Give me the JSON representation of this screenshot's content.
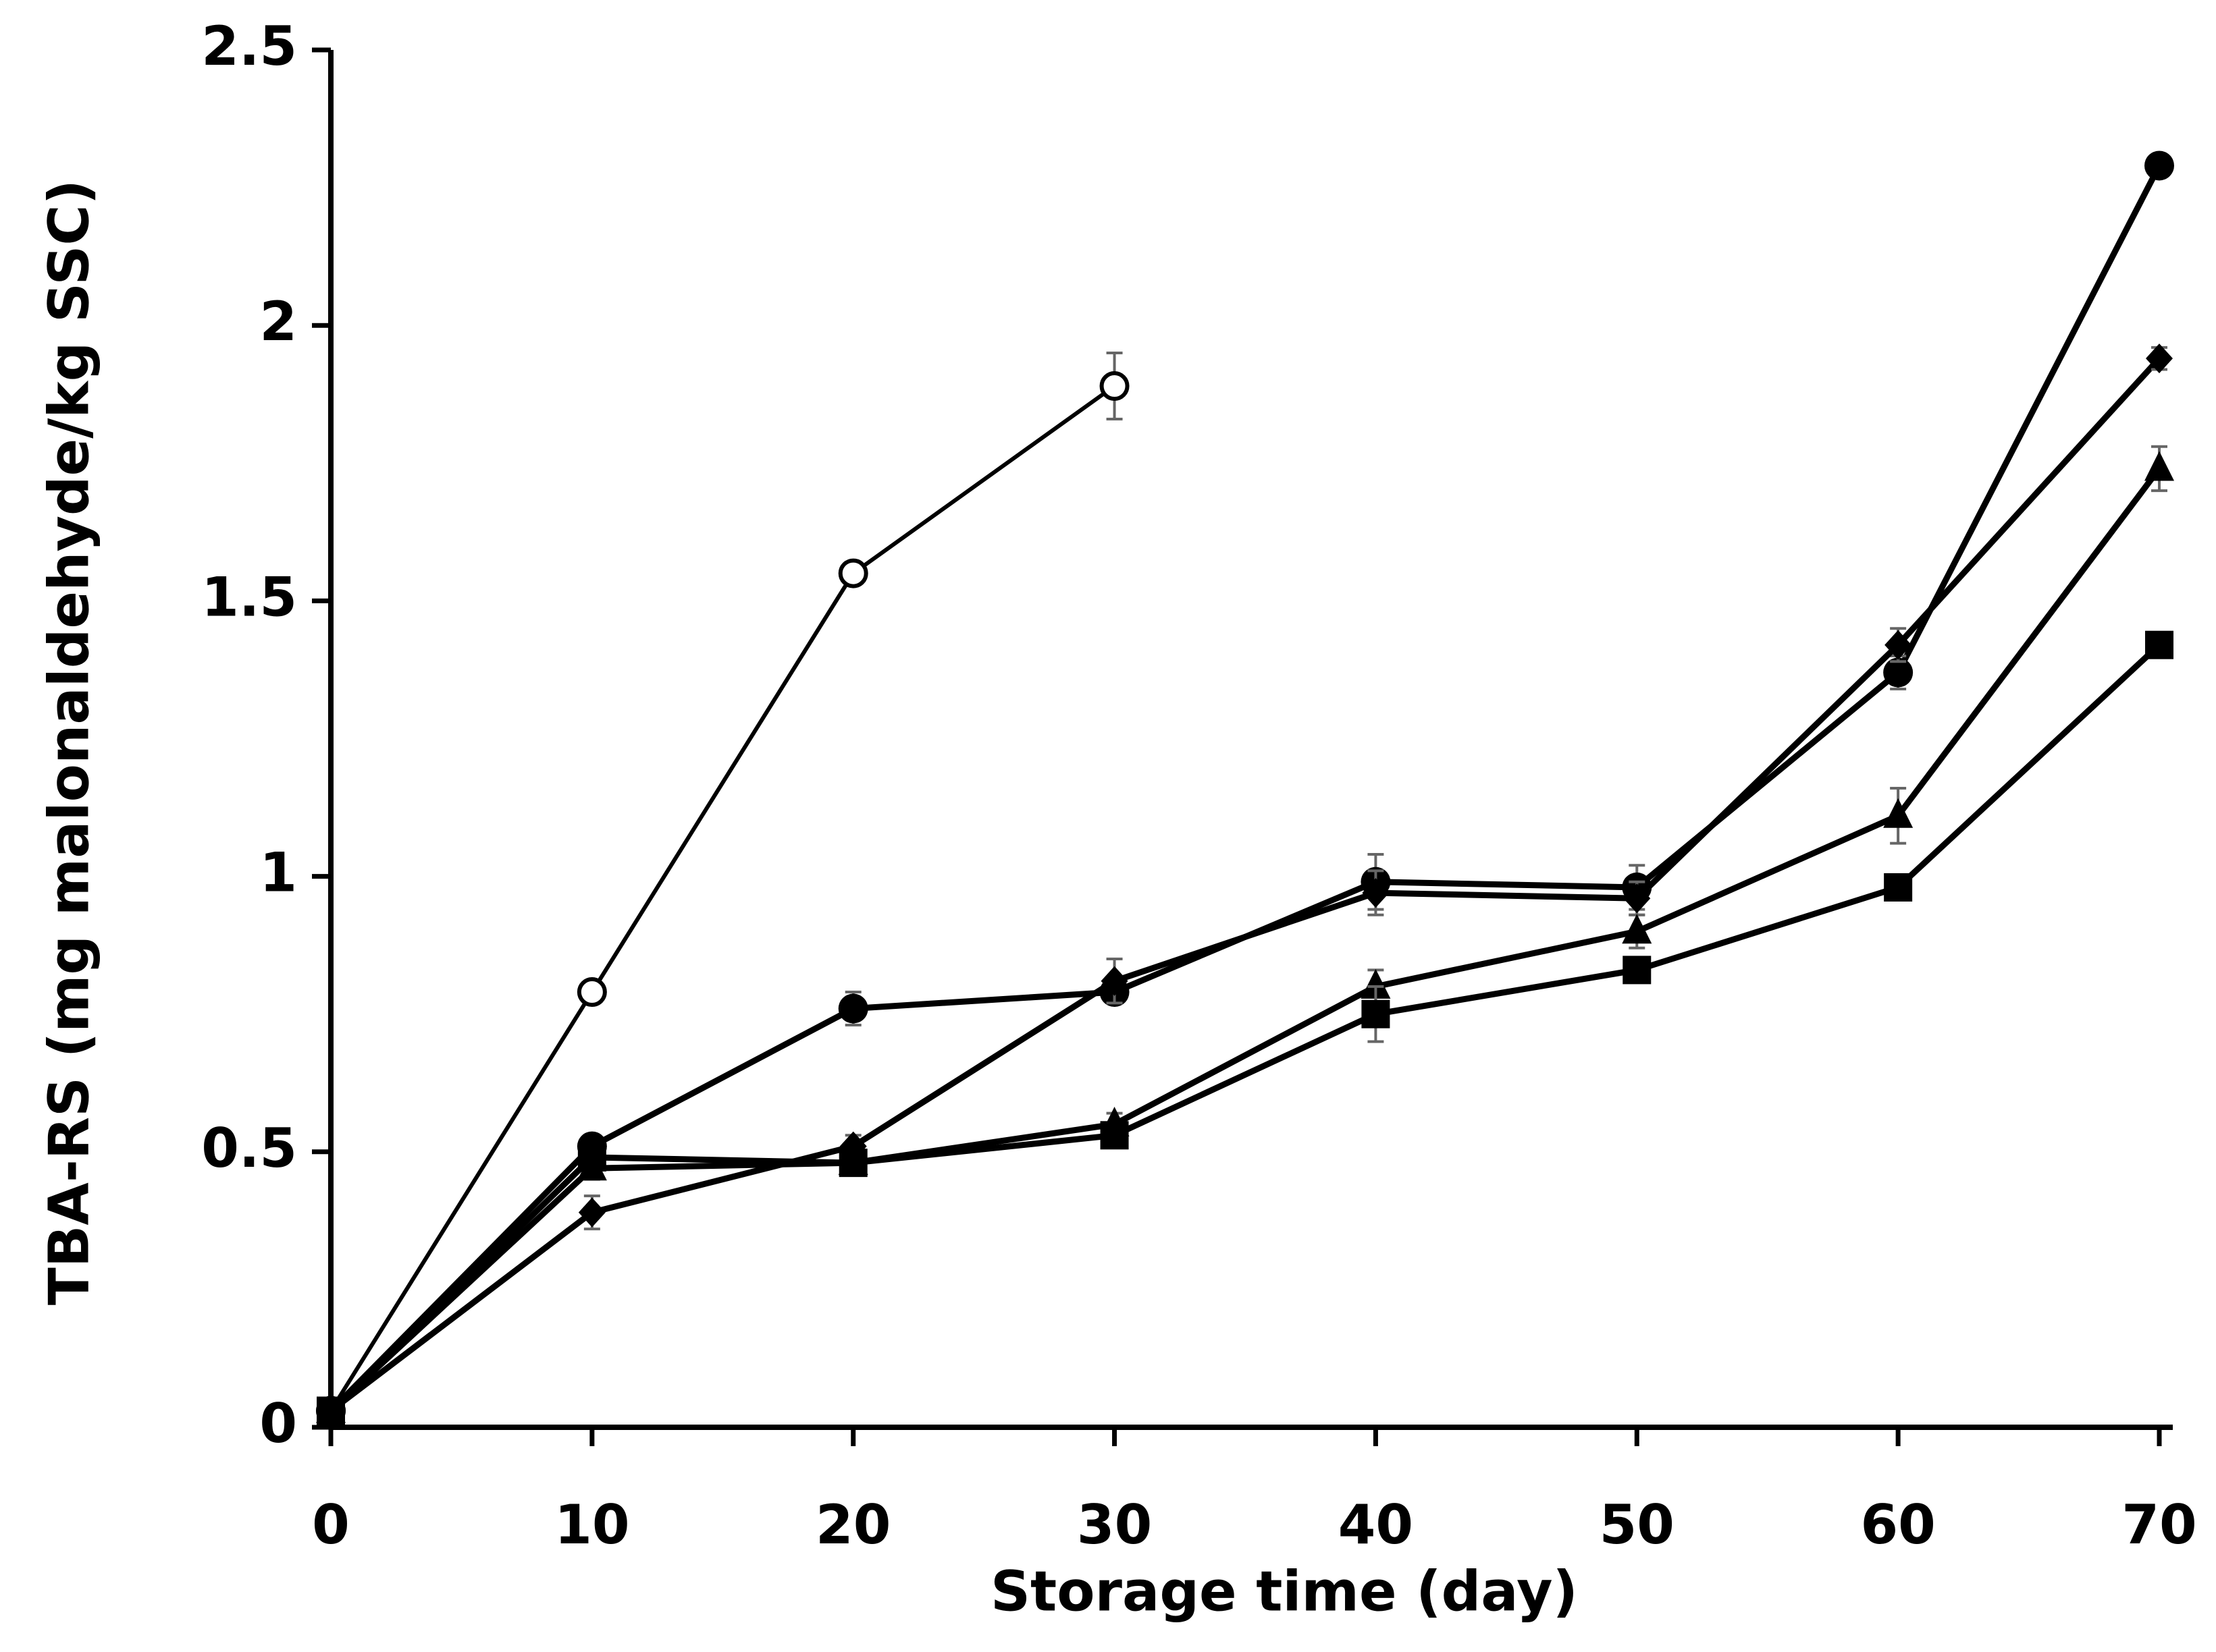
{
  "chart_data": {
    "type": "line",
    "x_label": "Storage time (day)",
    "y_label": "TBA-RS (mg malonaldehyde/kg SSC)",
    "x": [
      0,
      10,
      20,
      30,
      40,
      50,
      60,
      70
    ],
    "xlim": [
      0,
      70
    ],
    "xticks": [
      0,
      10,
      20,
      30,
      40,
      50,
      60,
      70
    ],
    "ylim": [
      0,
      2.5
    ],
    "yticks": [
      0,
      0.5,
      1,
      1.5,
      2,
      2.5
    ],
    "series": [
      {
        "color": "#000000",
        "marker": "circle-open",
        "values": [
          0.03,
          0.79,
          1.55,
          1.89,
          null,
          null,
          null,
          null
        ],
        "errors": [
          0.02,
          0.02,
          0.02,
          0.06,
          null,
          null,
          null,
          null
        ]
      },
      {
        "color": "#000000",
        "marker": "circle",
        "values": [
          0.03,
          0.51,
          0.76,
          0.79,
          0.99,
          0.98,
          1.37,
          2.29
        ],
        "errors": [
          0.01,
          0.02,
          0.03,
          0.02,
          0.05,
          0.04,
          0.03,
          0.02
        ]
      },
      {
        "color": "#000000",
        "marker": "diamond",
        "values": [
          0.03,
          0.39,
          0.51,
          0.81,
          0.97,
          0.96,
          1.42,
          1.94
        ],
        "errors": [
          0.01,
          0.03,
          0.02,
          0.04,
          0.04,
          0.03,
          0.03,
          0.02
        ]
      },
      {
        "color": "#000000",
        "marker": "triangle",
        "values": [
          0.03,
          0.47,
          0.48,
          0.55,
          0.8,
          0.9,
          1.11,
          1.74
        ],
        "errors": [
          0.01,
          0.02,
          0.02,
          0.02,
          0.03,
          0.03,
          0.05,
          0.04
        ]
      },
      {
        "color": "#000000",
        "marker": "square",
        "values": [
          0.03,
          0.49,
          0.48,
          0.53,
          0.75,
          0.83,
          0.98,
          1.42
        ],
        "errors": [
          0.01,
          0.02,
          0.02,
          0.02,
          0.05,
          0.02,
          0.02,
          0.02
        ]
      }
    ]
  }
}
